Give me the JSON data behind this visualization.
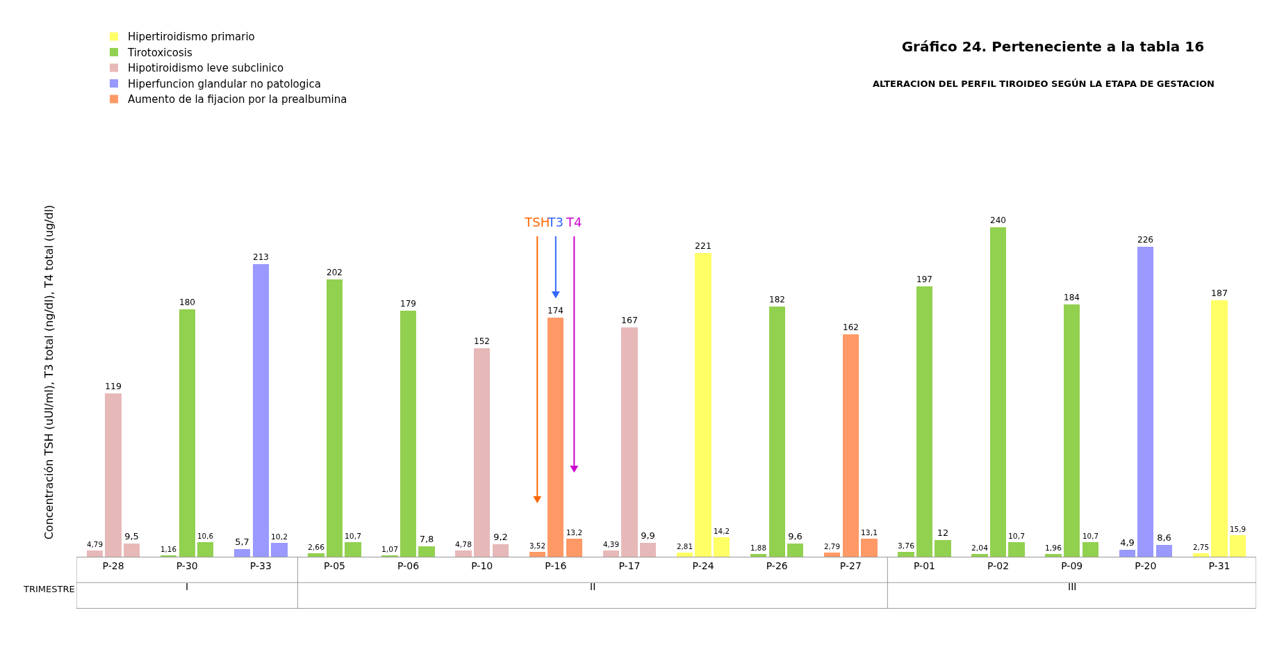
{
  "chart_data": {
    "type": "bar",
    "title": "Gráfico 24. Perteneciente a la tabla 16",
    "subtitle": "ALTERACION DEL PERFIL TIROIDEO SEGÚN LA ETAPA DE GESTACION",
    "ylabel": "Concentración TSH (uUI/ml), T3 total (ng/dl), T4 total (ug/dl)",
    "xlabel": "TRIMESTRE",
    "categories": [
      "P-28",
      "P-30",
      "P-33",
      "P-05",
      "P-06",
      "P-10",
      "P-16",
      "P-17",
      "P-24",
      "P-26",
      "P-27",
      "P-01",
      "P-02",
      "P-09",
      "P-20",
      "P-31"
    ],
    "series": [
      {
        "colors": [
          "#e6b9b8",
          "#92d050",
          "#9999ff",
          "#92d050",
          "#92d050",
          "#e6b9b8",
          "#ff9966",
          "#e6b9b8",
          "#ffff66",
          "#92d050",
          "#ff9966",
          "#92d050",
          "#92d050",
          "#92d050",
          "#9999ff",
          "#ffff66"
        ],
        "values": [
          4.79,
          1.16,
          5.7,
          2.66,
          1.07,
          4.78,
          3.52,
          4.39,
          2.81,
          1.88,
          2.79,
          3.76,
          2.04,
          1.96,
          4.9,
          2.75
        ],
        "value_labels": [
          "4,79",
          "1,16",
          "5,7",
          "2,66",
          "1,07",
          "4,78",
          "3,52",
          "4,39",
          "2,81",
          "1,88",
          "2,79",
          "3,76",
          "2,04",
          "1,96",
          "4,9",
          "2,75"
        ]
      },
      {
        "colors": [
          "#e6b9b8",
          "#92d050",
          "#9999ff",
          "#92d050",
          "#92d050",
          "#e6b9b8",
          "#ff9966",
          "#e6b9b8",
          "#ffff66",
          "#92d050",
          "#ff9966",
          "#92d050",
          "#92d050",
          "#92d050",
          "#9999ff",
          "#ffff66"
        ],
        "values": [
          119,
          180,
          213,
          202,
          179,
          152,
          174,
          167,
          221,
          182,
          162,
          197,
          240,
          184,
          226,
          187
        ],
        "value_labels": [
          "119",
          "180",
          "213",
          "202",
          "179",
          "152",
          "174",
          "167",
          "221",
          "182",
          "162",
          "197",
          "240",
          "184",
          "226",
          "187"
        ]
      },
      {
        "colors": [
          "#e6b9b8",
          "#92d050",
          "#9999ff",
          "#92d050",
          "#92d050",
          "#e6b9b8",
          "#ff9966",
          "#e6b9b8",
          "#ffff66",
          "#92d050",
          "#ff9966",
          "#92d050",
          "#92d050",
          "#92d050",
          "#9999ff",
          "#ffff66"
        ],
        "values": [
          9.5,
          10.6,
          10.2,
          10.7,
          7.8,
          9.2,
          13.2,
          9.9,
          14.2,
          9.6,
          13.1,
          12,
          10.7,
          10.7,
          8.6,
          15.9
        ],
        "value_labels": [
          "9,5",
          "10,6",
          "10,2",
          "10,7",
          "7,8",
          "9,2",
          "13,2",
          "9,9",
          "14,2",
          "9,6",
          "13,1",
          "12",
          "10,7",
          "10,7",
          "8,6",
          "15,9"
        ]
      },
      {
        "name": "Hipertiroidismo primario",
        "color": "#ffff66",
        "values": [
          null,
          null,
          null,
          null,
          null,
          null,
          null,
          null,
          null,
          null,
          null,
          null,
          null,
          null,
          null,
          null
        ]
      },
      {
        "name": "Tirotoxicosis",
        "color": "#92d050",
        "values": [
          null,
          null,
          null,
          null,
          null,
          null,
          null,
          null,
          null,
          null,
          null,
          null,
          null,
          null,
          null,
          null
        ]
      },
      {
        "name": "Hipotiroidismo leve subclinico",
        "color": "#e6b9b8",
        "values": [
          null,
          null,
          null,
          null,
          null,
          null,
          null,
          null,
          null,
          null,
          null,
          null,
          null,
          null,
          null,
          null
        ]
      },
      {
        "name": "Hiperfuncion glandular no patologica",
        "color": "#9999ff",
        "values": [
          null,
          null,
          null,
          null,
          null,
          null,
          null,
          null,
          null,
          null,
          null,
          null,
          null,
          null,
          null,
          null
        ]
      },
      {
        "name": "Aumento de la fijacion por la prealbumina",
        "color": "#ff9966",
        "values": [
          null,
          null,
          null,
          null,
          null,
          null,
          null,
          null,
          null,
          null,
          null,
          null,
          null,
          null,
          null,
          null
        ]
      }
    ],
    "annotations": [
      "TSH",
      "T3",
      "T4",
      "I",
      "II",
      "III"
    ],
    "legend": "top left",
    "grid": false
  }
}
